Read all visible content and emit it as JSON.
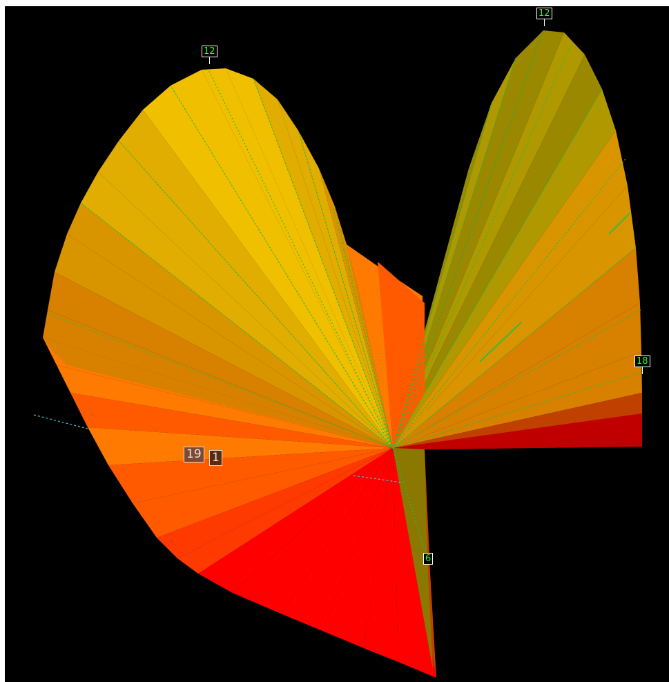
{
  "view": {
    "background": "#000000",
    "guide_color": "#22c040",
    "axis_color": "#40c8d8"
  },
  "hour_labels": {
    "left_top": "12",
    "right_top": "12",
    "right_side": "18",
    "bottom": "6"
  },
  "markers": {
    "m19": {
      "text": "19",
      "color": "#7a4a35"
    },
    "m1": {
      "text": "1",
      "color": "#5a2a12"
    }
  },
  "colors": {
    "yellow_light": "#f0c000",
    "yellow": "#e0ad00",
    "gold": "#d89500",
    "amber": "#d88000",
    "orange": "#ff7a00",
    "orange_red": "#ff5a00",
    "red_orange": "#ff3a00",
    "red": "#ff0000",
    "olive_light": "#b09800",
    "olive": "#9a8800",
    "olive_dark": "#8a7800",
    "rust": "#c04000",
    "dark_red": "#c00000"
  }
}
